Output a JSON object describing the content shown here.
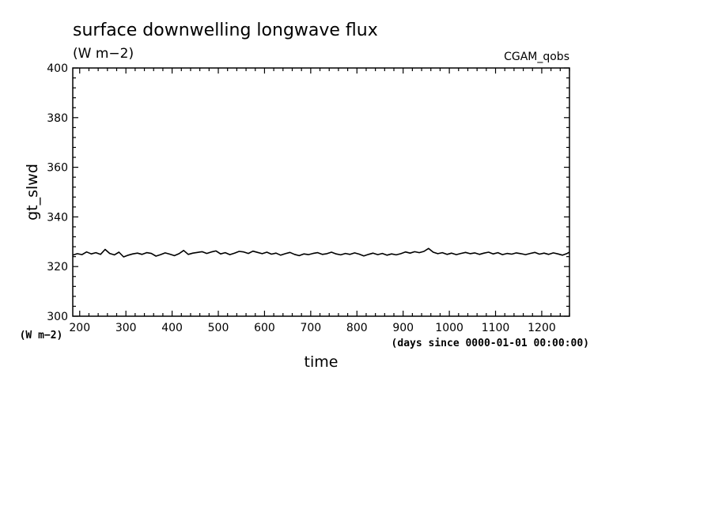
{
  "chart_data": {
    "type": "line",
    "title": "surface downwelling longwave flux",
    "units": "(W m−2)",
    "experiment": "CGAM_qobs",
    "ylabel": "gt_slwd",
    "y_units": "(W m−2)",
    "xlabel": "time",
    "x_units": "(days since 0000-01-01 00:00:00)",
    "xlim": [
      185,
      1260
    ],
    "ylim": [
      300,
      400
    ],
    "x_ticks": [
      200,
      300,
      400,
      500,
      600,
      700,
      800,
      900,
      1000,
      1100,
      1200
    ],
    "y_ticks": [
      300,
      320,
      340,
      360,
      380,
      400
    ],
    "series": [
      {
        "x": [
          185,
          195,
          205,
          215,
          225,
          235,
          245,
          255,
          265,
          275,
          285,
          295,
          305,
          315,
          325,
          335,
          345,
          355,
          365,
          375,
          385,
          395,
          405,
          415,
          425,
          435,
          445,
          455,
          465,
          475,
          485,
          495,
          505,
          515,
          525,
          535,
          545,
          555,
          565,
          575,
          585,
          595,
          605,
          615,
          625,
          635,
          645,
          655,
          665,
          675,
          685,
          695,
          705,
          715,
          725,
          735,
          745,
          755,
          765,
          775,
          785,
          795,
          805,
          815,
          825,
          835,
          845,
          855,
          865,
          875,
          885,
          895,
          905,
          915,
          925,
          935,
          945,
          955,
          965,
          975,
          985,
          995,
          1005,
          1015,
          1025,
          1035,
          1045,
          1055,
          1065,
          1075,
          1085,
          1095,
          1105,
          1115,
          1125,
          1135,
          1145,
          1155,
          1165,
          1175,
          1185,
          1195,
          1205,
          1215,
          1225,
          1235,
          1245,
          1255,
          1260
        ],
        "y": [
          324.6,
          325.2,
          324.8,
          325.9,
          325.1,
          325.6,
          324.9,
          326.9,
          325.3,
          324.7,
          325.8,
          323.9,
          324.6,
          325.1,
          325.4,
          324.9,
          325.6,
          325.3,
          324.2,
          324.8,
          325.5,
          325.0,
          324.4,
          325.2,
          326.5,
          324.9,
          325.4,
          325.7,
          326.0,
          325.3,
          325.9,
          326.3,
          325.1,
          325.6,
          324.8,
          325.4,
          326.1,
          325.9,
          325.3,
          326.2,
          325.7,
          325.2,
          325.8,
          325.0,
          325.4,
          324.6,
          325.2,
          325.7,
          324.9,
          324.4,
          325.1,
          324.8,
          325.3,
          325.6,
          324.9,
          325.2,
          325.8,
          325.1,
          324.7,
          325.3,
          324.9,
          325.5,
          325.0,
          324.3,
          324.9,
          325.4,
          324.8,
          325.3,
          324.6,
          325.1,
          324.7,
          325.2,
          325.9,
          325.4,
          326.0,
          325.6,
          326.1,
          327.3,
          325.8,
          325.2,
          325.6,
          324.9,
          325.4,
          324.8,
          325.3,
          325.7,
          325.2,
          325.5,
          324.9,
          325.4,
          325.8,
          325.1,
          325.6,
          324.8,
          325.3,
          325.0,
          325.5,
          325.2,
          324.8,
          325.3,
          325.7,
          325.0,
          325.4,
          324.9,
          325.5,
          325.1,
          324.6,
          325.3,
          325.8
        ]
      }
    ],
    "grid": false,
    "legend": "none"
  }
}
